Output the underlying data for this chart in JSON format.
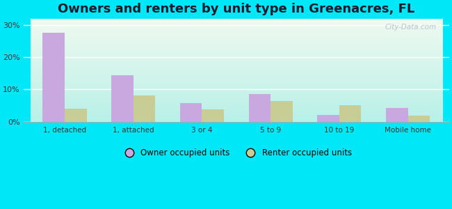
{
  "title": "Owners and renters by unit type in Greenacres, FL",
  "categories": [
    "1, detached",
    "1, attached",
    "3 or 4",
    "5 to 9",
    "10 to 19",
    "Mobile home"
  ],
  "owner_values": [
    27.5,
    14.5,
    5.8,
    8.5,
    2.2,
    4.2
  ],
  "renter_values": [
    4.0,
    8.2,
    3.8,
    6.5,
    5.2,
    1.8
  ],
  "owner_color": "#c9a8e0",
  "renter_color": "#c8cd96",
  "ylim": [
    0,
    32
  ],
  "yticks": [
    0,
    10,
    20,
    30
  ],
  "ytick_labels": [
    "0%",
    "10%",
    "20%",
    "30%"
  ],
  "bar_width": 0.32,
  "grad_top": "#f0faf0",
  "grad_bottom": "#b8f0e8",
  "grad_left": "#e8fef0",
  "outer_bg": "#00e8f8",
  "legend_owner": "Owner occupied units",
  "legend_renter": "Renter occupied units",
  "watermark": "City-Data.com",
  "title_fontsize": 13,
  "title_color": "#1a1a2e"
}
